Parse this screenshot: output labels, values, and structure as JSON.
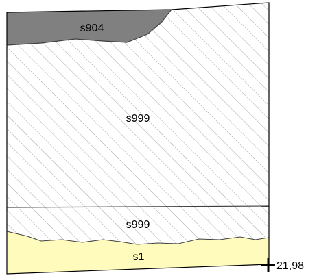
{
  "layers": [
    {
      "id": "s904",
      "label": "s904",
      "fill": "#808080"
    },
    {
      "id": "s999-upper",
      "label": "s999",
      "fill": "#ffffff",
      "pattern": "diagonal-hatch"
    },
    {
      "id": "s999-lower",
      "label": "s999",
      "fill": "#ffffff",
      "pattern": "diagonal-hatch"
    },
    {
      "id": "s1",
      "label": "s1",
      "fill": "#fffbbd"
    }
  ],
  "colors": {
    "outline": "#000000",
    "hatch": "#a6a6a6",
    "boundary": "#404040"
  },
  "marker": {
    "icon": "crosshair-icon",
    "label": "21,98"
  }
}
